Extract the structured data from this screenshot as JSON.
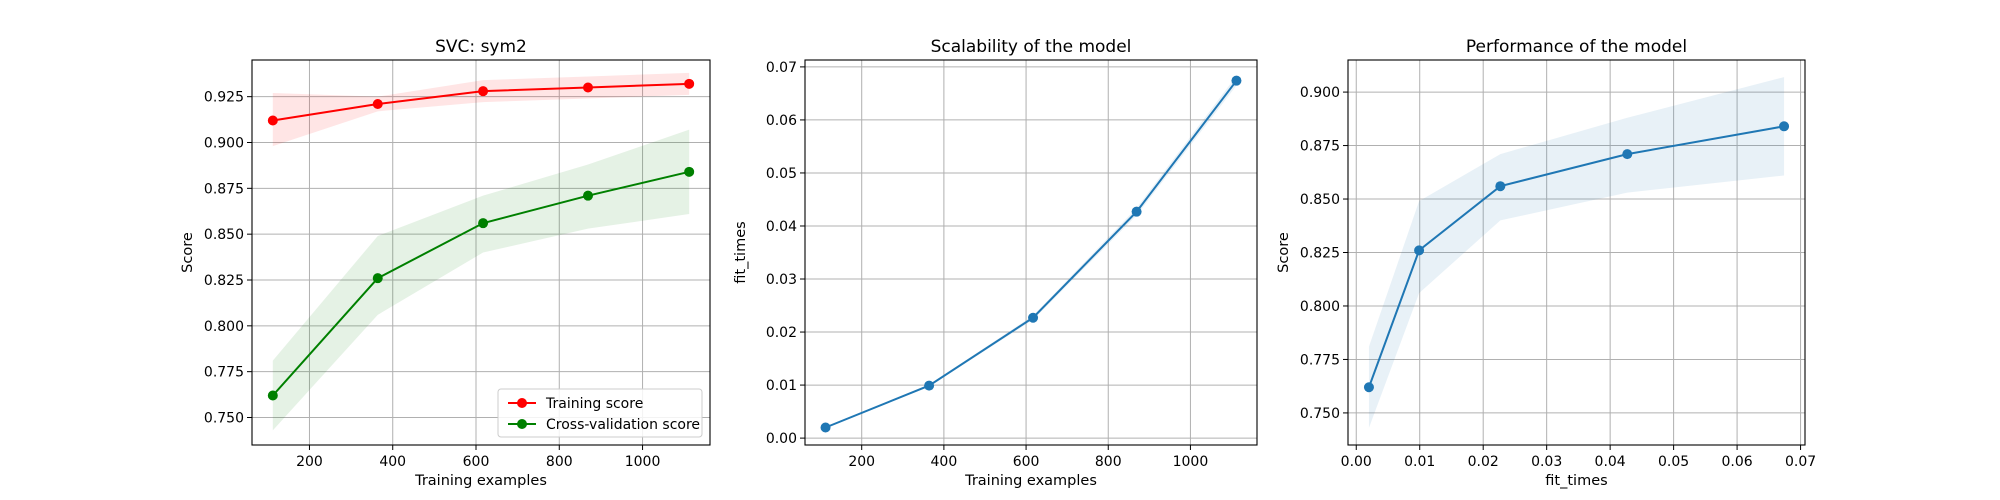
{
  "chart_data": [
    {
      "type": "line",
      "title": "SVC: sym2",
      "xlabel": "Training examples",
      "ylabel": "Score",
      "xlim": [
        62,
        1162
      ],
      "ylim": [
        0.735,
        0.945
      ],
      "xticks": [
        200,
        400,
        600,
        800,
        1000
      ],
      "yticks": [
        0.75,
        0.775,
        0.8,
        0.825,
        0.85,
        0.875,
        0.9,
        0.925
      ],
      "ytick_labels": [
        "0.750",
        "0.775",
        "0.800",
        "0.825",
        "0.850",
        "0.875",
        "0.900",
        "0.925"
      ],
      "grid": true,
      "legend": "lower-right",
      "x": [
        112,
        364,
        617,
        869,
        1112
      ],
      "series": [
        {
          "name": "Training score",
          "color": "#ff0000",
          "band_color": "#ff0000",
          "values": [
            0.912,
            0.921,
            0.928,
            0.93,
            0.932
          ],
          "band_low": [
            0.898,
            0.917,
            0.922,
            0.924,
            0.926
          ],
          "band_high": [
            0.927,
            0.925,
            0.934,
            0.936,
            0.938
          ]
        },
        {
          "name": "Cross-validation score",
          "color": "#008000",
          "band_color": "#008000",
          "values": [
            0.762,
            0.826,
            0.856,
            0.871,
            0.884
          ],
          "band_low": [
            0.743,
            0.806,
            0.84,
            0.853,
            0.861
          ],
          "band_high": [
            0.781,
            0.849,
            0.871,
            0.888,
            0.907
          ]
        }
      ]
    },
    {
      "type": "line",
      "title": "Scalability of the model",
      "xlabel": "Training examples",
      "ylabel": "fit_times",
      "xlim": [
        62,
        1162
      ],
      "ylim": [
        -0.0013,
        0.0713
      ],
      "xticks": [
        200,
        400,
        600,
        800,
        1000
      ],
      "yticks": [
        0,
        0.01,
        0.02,
        0.03,
        0.04,
        0.05,
        0.06,
        0.07
      ],
      "ytick_labels": [
        "0.00",
        "0.01",
        "0.02",
        "0.03",
        "0.04",
        "0.05",
        "0.06",
        "0.07"
      ],
      "grid": true,
      "x": [
        112,
        364,
        617,
        869,
        1112
      ],
      "series": [
        {
          "color": "#1f77b4",
          "band_color": "#1f77b4",
          "values": [
            0.002,
            0.0099,
            0.0227,
            0.0427,
            0.0674
          ],
          "band_low": [
            0.0019,
            0.0097,
            0.0223,
            0.042,
            0.0665
          ],
          "band_high": [
            0.0021,
            0.0101,
            0.0231,
            0.0434,
            0.0683
          ]
        }
      ]
    },
    {
      "type": "line",
      "title": "Performance of the model",
      "xlabel": "fit_times",
      "ylabel": "Score",
      "xlim": [
        -0.0013,
        0.0707
      ],
      "ylim": [
        0.735,
        0.915
      ],
      "xticks": [
        0,
        0.01,
        0.02,
        0.03,
        0.04,
        0.05,
        0.06,
        0.07
      ],
      "xtick_labels": [
        "0.00",
        "0.01",
        "0.02",
        "0.03",
        "0.04",
        "0.05",
        "0.06",
        "0.07"
      ],
      "yticks": [
        0.75,
        0.775,
        0.8,
        0.825,
        0.85,
        0.875,
        0.9
      ],
      "ytick_labels": [
        "0.750",
        "0.775",
        "0.800",
        "0.825",
        "0.850",
        "0.875",
        "0.900"
      ],
      "grid": true,
      "x": [
        0.002,
        0.0099,
        0.0227,
        0.0427,
        0.0674
      ],
      "series": [
        {
          "color": "#1f77b4",
          "band_color": "#1f77b4",
          "values": [
            0.762,
            0.826,
            0.856,
            0.871,
            0.884
          ],
          "band_low": [
            0.743,
            0.806,
            0.84,
            0.853,
            0.861
          ],
          "band_high": [
            0.781,
            0.849,
            0.871,
            0.888,
            0.907
          ]
        }
      ]
    }
  ]
}
